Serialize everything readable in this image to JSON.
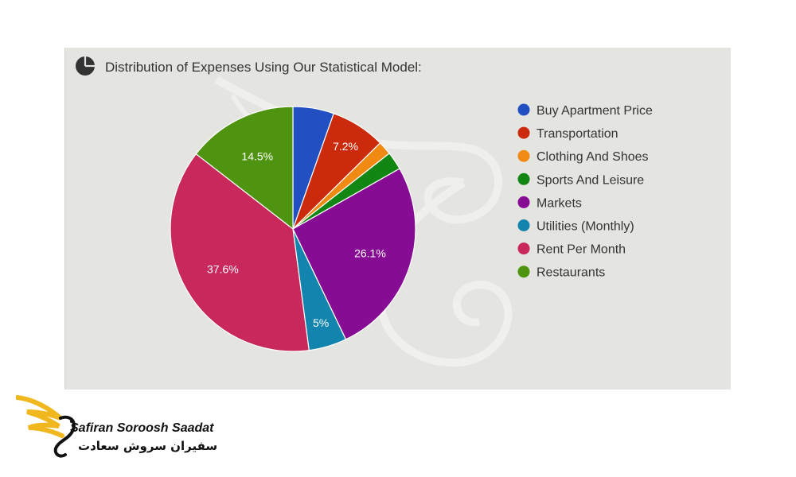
{
  "colors": {
    "panel_bg": "#e4e4e1",
    "slice_stroke": "#ffffff"
  },
  "title_icon": "pie-chart-icon",
  "chart_data": {
    "type": "pie",
    "title": "Distribution of Expenses Using Our Statistical Model:",
    "legend_position": "right",
    "start_angle_deg": 0,
    "direction": "clockwise",
    "slices": [
      {
        "name": "Buy Apartment Price",
        "value": 5.4,
        "color": "#2250c2",
        "label": ""
      },
      {
        "name": "Transportation",
        "value": 7.2,
        "color": "#cc2a0c",
        "label": "7.2%"
      },
      {
        "name": "Clothing And Shoes",
        "value": 1.8,
        "color": "#f08a12",
        "label": ""
      },
      {
        "name": "Sports And Leisure",
        "value": 2.4,
        "color": "#128612",
        "label": ""
      },
      {
        "name": "Markets",
        "value": 26.1,
        "color": "#870c94",
        "label": "26.1%"
      },
      {
        "name": "Utilities (Monthly)",
        "value": 5.0,
        "color": "#1384ad",
        "label": "5%"
      },
      {
        "name": "Rent Per Month",
        "value": 37.6,
        "color": "#c8285a",
        "label": "37.6%"
      },
      {
        "name": "Restaurants",
        "value": 14.5,
        "color": "#4f9410",
        "label": "14.5%"
      }
    ]
  },
  "logo": {
    "name_en": "Safiran Soroosh Saadat",
    "name_fa": "سفیران سروش سعادت"
  }
}
